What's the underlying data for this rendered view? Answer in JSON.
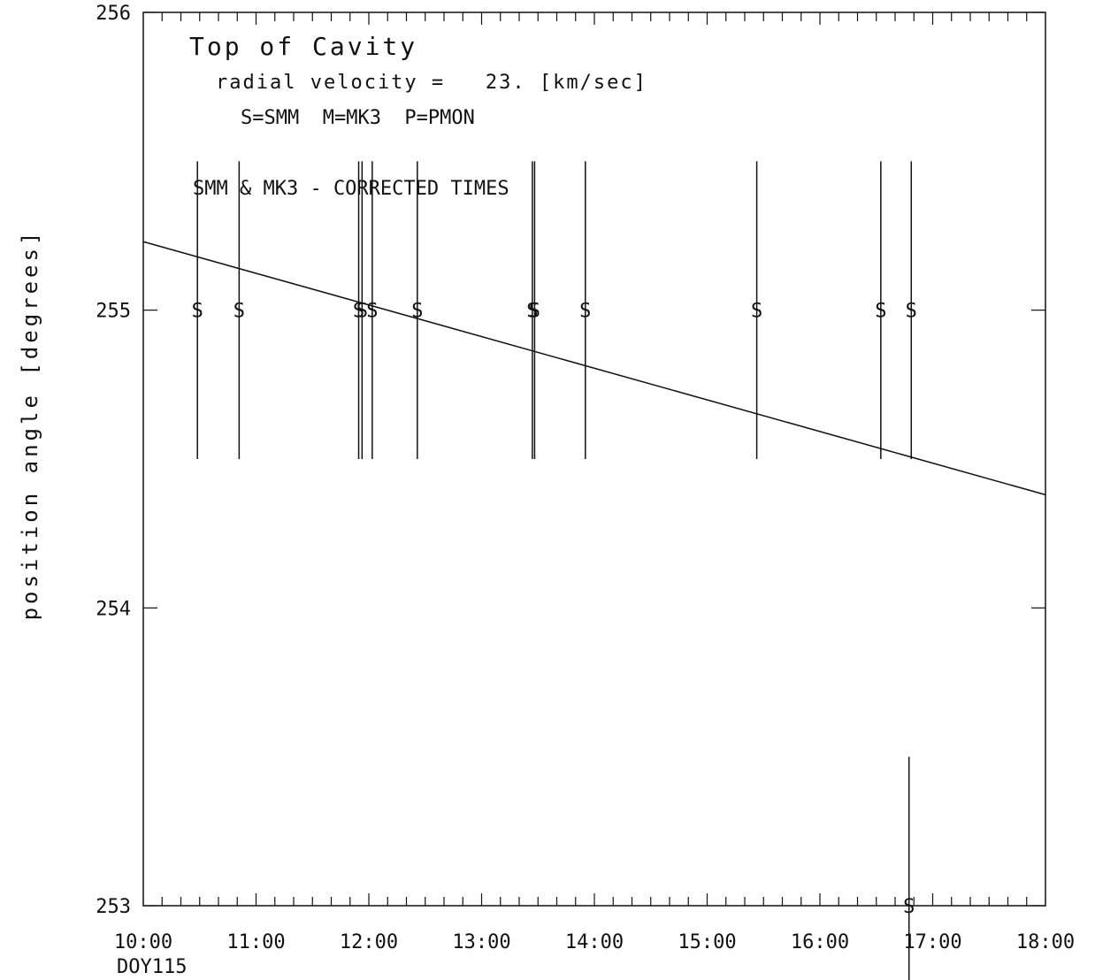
{
  "chart_data": {
    "type": "line",
    "title": "Top of Cavity",
    "annotations": {
      "velocity": "radial velocity =   23. [km/sec]",
      "legend_key": "S=SMM  M=MK3  P=PMON",
      "note": "SMM & MK3 - CORRECTED TIMES"
    },
    "xlabel": "",
    "ylabel": "position angle [degrees]",
    "x_first_sublabel": "DOY115",
    "x_range": [
      10.0,
      18.0
    ],
    "ylim": [
      253,
      256
    ],
    "x_tick_values": [
      10,
      11,
      12,
      13,
      14,
      15,
      16,
      17,
      18
    ],
    "x_tick_labels": [
      "10:00",
      "11:00",
      "12:00",
      "13:00",
      "14:00",
      "15:00",
      "16:00",
      "17:00",
      "18:00"
    ],
    "y_tick_values": [
      253,
      254,
      255,
      256
    ],
    "y_tick_labels": [
      "253",
      "254",
      "255",
      "256"
    ],
    "fit_line": {
      "x": [
        10.0,
        18.0
      ],
      "y": [
        255.23,
        254.38
      ]
    },
    "observations": [
      {
        "x": 10.48,
        "y": 255.0,
        "marker": "S",
        "y_range": [
          254.5,
          255.5
        ]
      },
      {
        "x": 10.85,
        "y": 255.0,
        "marker": "S",
        "y_range": [
          254.5,
          255.5
        ]
      },
      {
        "x": 11.91,
        "y": 255.0,
        "marker": "S",
        "y_range": [
          254.5,
          255.5
        ]
      },
      {
        "x": 11.94,
        "y": 255.0,
        "marker": "S",
        "y_range": [
          254.5,
          255.5
        ]
      },
      {
        "x": 12.03,
        "y": 255.0,
        "marker": "S",
        "y_range": [
          254.5,
          255.5
        ]
      },
      {
        "x": 12.43,
        "y": 255.0,
        "marker": "S",
        "y_range": [
          254.5,
          255.5
        ]
      },
      {
        "x": 13.45,
        "y": 255.0,
        "marker": "S",
        "y_range": [
          254.5,
          255.5
        ]
      },
      {
        "x": 13.47,
        "y": 255.0,
        "marker": "S",
        "y_range": [
          254.5,
          255.5
        ]
      },
      {
        "x": 13.92,
        "y": 255.0,
        "marker": "S",
        "y_range": [
          254.5,
          255.5
        ]
      },
      {
        "x": 15.44,
        "y": 255.0,
        "marker": "S",
        "y_range": [
          254.5,
          255.5
        ]
      },
      {
        "x": 16.54,
        "y": 255.0,
        "marker": "S",
        "y_range": [
          254.5,
          255.5
        ]
      },
      {
        "x": 16.81,
        "y": 255.0,
        "marker": "S",
        "y_range": [
          254.5,
          255.5
        ]
      },
      {
        "x": 16.79,
        "y": 253.0,
        "marker": "S",
        "y_range": [
          252.7,
          253.5
        ]
      }
    ],
    "grid": false,
    "legend": "none"
  }
}
